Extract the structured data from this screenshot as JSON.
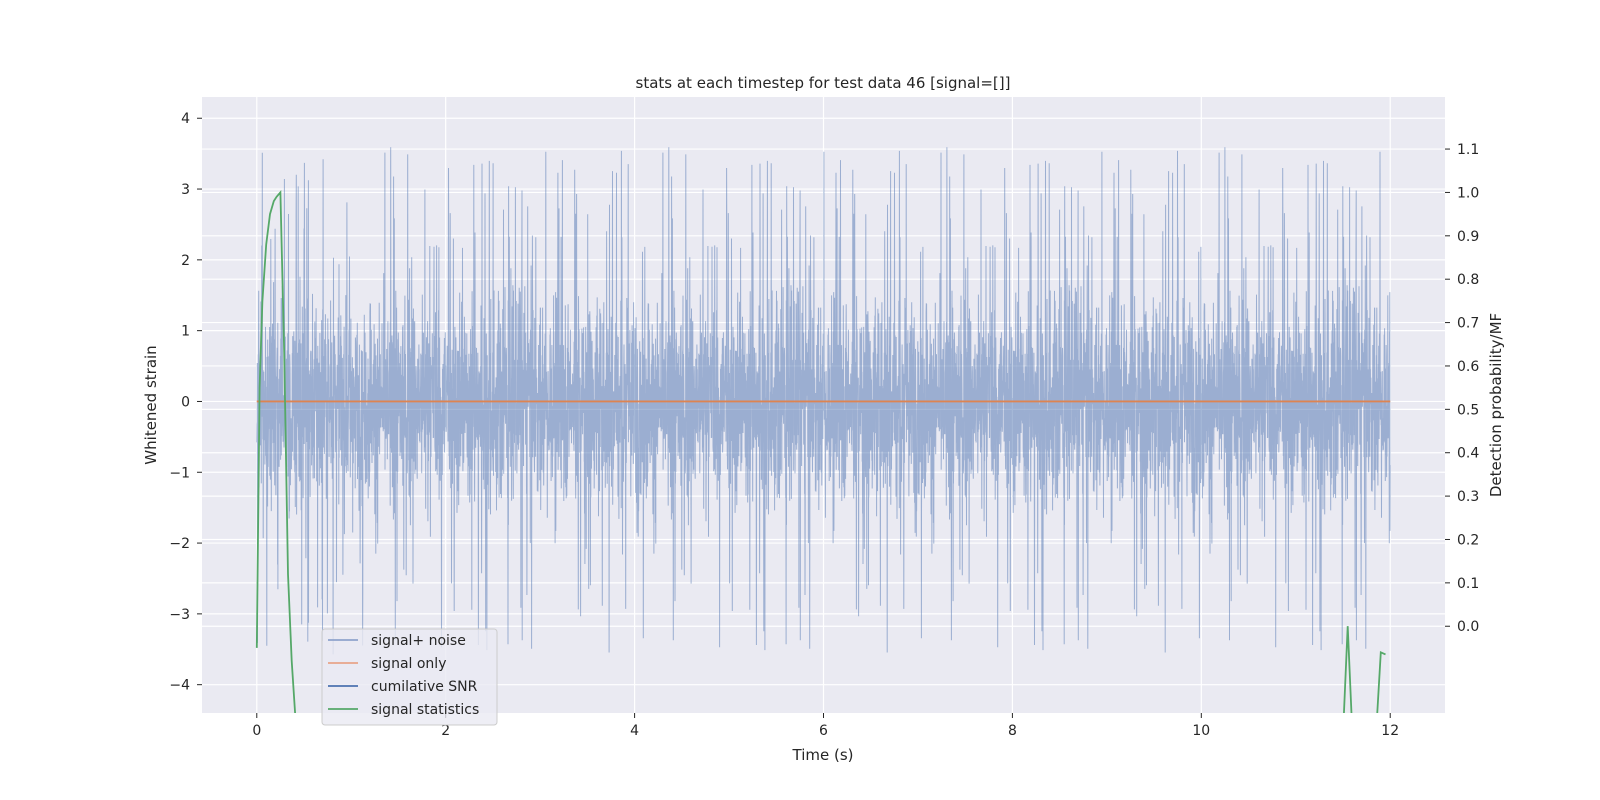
{
  "chart_data": {
    "type": "line",
    "title": "stats at each timestep for test data 46 [signal=[]]",
    "xlabel": "Time (s)",
    "ylabel": "Whitened strain",
    "y2label": "Detection probability/MF",
    "xlim": [
      -0.58,
      12.58
    ],
    "ylim": [
      -4.4,
      4.3
    ],
    "y2lim": [
      -0.2,
      1.22
    ],
    "xticks": [
      0,
      2,
      4,
      6,
      8,
      10,
      12
    ],
    "yticks": [
      -4,
      -3,
      -2,
      -1,
      0,
      1,
      2,
      3,
      4
    ],
    "y2ticks": [
      0.0,
      0.1,
      0.2,
      0.3,
      0.4,
      0.5,
      0.6,
      0.7,
      0.8,
      0.9,
      1.0,
      1.1
    ],
    "xtick_labels": [
      "0",
      "2",
      "4",
      "6",
      "8",
      "10",
      "12"
    ],
    "ytick_labels": [
      "−4",
      "−3",
      "−2",
      "−1",
      "0",
      "1",
      "2",
      "3",
      "4"
    ],
    "y2tick_labels": [
      "0.0",
      "0.1",
      "0.2",
      "0.3",
      "0.4",
      "0.5",
      "0.6",
      "0.7",
      "0.8",
      "0.9",
      "1.0",
      "1.1"
    ],
    "noise": {
      "x_start": 0,
      "x_end": 12,
      "band_low": -1.35,
      "band_high": 1.2,
      "peak_max": 3.93,
      "trough_min": -4.08
    },
    "series": [
      {
        "name": "signal+ noise",
        "color": "#4c72b0",
        "opacity": 0.5,
        "axis": "left",
        "note": "dense noise trace"
      },
      {
        "name": "signal only",
        "color": "#dd8452",
        "axis": "left",
        "x": [
          0,
          12
        ],
        "y": [
          0,
          0
        ]
      },
      {
        "name": "cumilative SNR",
        "color": "#4c72b0",
        "axis": "left",
        "x": [],
        "y": []
      },
      {
        "name": "signal statistics",
        "color": "#55a868",
        "axis": "right",
        "x": [
          0,
          0.03,
          0.06,
          0.1,
          0.14,
          0.18,
          0.21,
          0.25,
          0.29,
          0.33,
          0.37,
          0.42,
          11.5,
          11.55,
          11.6,
          11.85,
          11.9,
          11.95
        ],
        "y": [
          -0.05,
          0.55,
          0.75,
          0.88,
          0.95,
          0.98,
          0.99,
          1.0,
          0.63,
          0.12,
          -0.08,
          -0.25,
          -0.25,
          0.0,
          -0.25,
          -0.25,
          -0.06,
          -0.065
        ]
      }
    ],
    "legend": {
      "position": "lower-left",
      "entries": [
        {
          "label": "signal+ noise",
          "color": "#8fa3cc"
        },
        {
          "label": "signal only",
          "color": "#e8a488"
        },
        {
          "label": "cumilative SNR",
          "color": "#4c72b0"
        },
        {
          "label": "signal statistics",
          "color": "#55a868"
        }
      ]
    },
    "colors": {
      "axes_bg": "#eaeaf2",
      "grid": "#ffffff",
      "text": "#262626"
    }
  }
}
